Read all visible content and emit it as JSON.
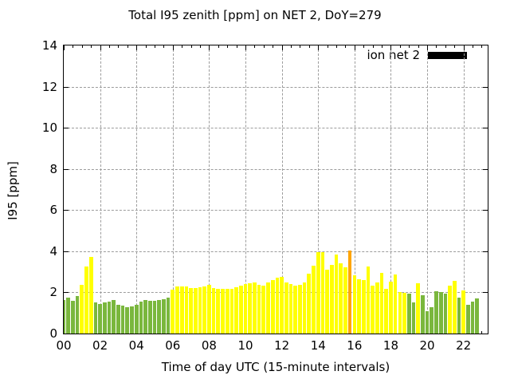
{
  "title": "Total I95 zenith [ppm] on NET 2, DoY=279",
  "legend": {
    "label": "ion net 2",
    "swatch_color": "#000000"
  },
  "axes": {
    "ylabel": "I95 [ppm]",
    "xlabel": "Time of day UTC (15-minute intervals)",
    "y_ticks": [
      "0",
      "2",
      "4",
      "6",
      "8",
      "10",
      "12",
      "14"
    ],
    "x_ticks": [
      "00",
      "02",
      "04",
      "06",
      "08",
      "10",
      "12",
      "14",
      "16",
      "18",
      "20",
      "22"
    ]
  },
  "chart_data": {
    "type": "bar",
    "title": "Total I95 zenith [ppm] on NET 2, DoY=279",
    "xlabel": "Time of day UTC (15-minute intervals)",
    "ylabel": "I95 [ppm]",
    "legend": "ion net 2",
    "legend_position": "top-right-inside",
    "grid": true,
    "ylim": [
      0,
      14
    ],
    "x_hours_range": [
      0,
      23.33
    ],
    "interval_minutes": 15,
    "palette": {
      "g": "#7ab73d",
      "y": "#ffff00",
      "o": "#ffa500"
    },
    "categories": [
      "00:00",
      "00:15",
      "00:30",
      "00:45",
      "01:00",
      "01:15",
      "01:30",
      "01:45",
      "02:00",
      "02:15",
      "02:30",
      "02:45",
      "03:00",
      "03:15",
      "03:30",
      "03:45",
      "04:00",
      "04:15",
      "04:30",
      "04:45",
      "05:00",
      "05:15",
      "05:30",
      "05:45",
      "06:00",
      "06:15",
      "06:30",
      "06:45",
      "07:00",
      "07:15",
      "07:30",
      "07:45",
      "08:00",
      "08:15",
      "08:30",
      "08:45",
      "09:00",
      "09:15",
      "09:30",
      "09:45",
      "10:00",
      "10:15",
      "10:30",
      "10:45",
      "11:00",
      "11:15",
      "11:30",
      "11:45",
      "12:00",
      "12:15",
      "12:30",
      "12:45",
      "13:00",
      "13:15",
      "13:30",
      "13:45",
      "14:00",
      "14:15",
      "14:30",
      "14:45",
      "15:00",
      "15:15",
      "15:30",
      "15:45",
      "16:00",
      "16:15",
      "16:30",
      "16:45",
      "17:00",
      "17:15",
      "17:30",
      "17:45",
      "18:00",
      "18:15",
      "18:30",
      "18:45",
      "19:00",
      "19:15",
      "19:30",
      "19:45",
      "20:00",
      "20:15",
      "20:30",
      "20:45",
      "21:00",
      "21:15",
      "21:30",
      "21:45",
      "22:00",
      "22:15",
      "22:30",
      "22:45"
    ],
    "values": [
      1.63,
      1.74,
      1.6,
      1.84,
      2.37,
      3.25,
      3.72,
      1.53,
      1.43,
      1.53,
      1.57,
      1.63,
      1.4,
      1.35,
      1.28,
      1.33,
      1.4,
      1.55,
      1.62,
      1.6,
      1.6,
      1.63,
      1.68,
      1.73,
      2.15,
      2.3,
      2.3,
      2.27,
      2.22,
      2.22,
      2.23,
      2.28,
      2.35,
      2.22,
      2.18,
      2.17,
      2.18,
      2.17,
      2.24,
      2.31,
      2.41,
      2.46,
      2.48,
      2.35,
      2.33,
      2.5,
      2.6,
      2.72,
      2.76,
      2.5,
      2.4,
      2.31,
      2.35,
      2.5,
      2.89,
      3.28,
      3.95,
      3.95,
      3.09,
      3.35,
      3.82,
      3.4,
      3.23,
      4.05,
      2.85,
      2.63,
      2.61,
      3.25,
      2.31,
      2.48,
      2.96,
      2.18,
      2.53,
      2.87,
      2.02,
      1.98,
      1.94,
      1.53,
      2.45,
      1.86,
      1.1,
      1.27,
      2.05,
      2.0,
      1.92,
      2.31,
      2.55,
      1.75,
      2.1,
      1.4,
      1.55,
      1.7
    ],
    "colors": [
      "g",
      "g",
      "g",
      "g",
      "y",
      "y",
      "y",
      "g",
      "g",
      "g",
      "g",
      "g",
      "g",
      "g",
      "g",
      "g",
      "g",
      "g",
      "g",
      "g",
      "g",
      "g",
      "g",
      "g",
      "y",
      "y",
      "y",
      "y",
      "y",
      "y",
      "y",
      "y",
      "y",
      "y",
      "y",
      "y",
      "y",
      "y",
      "y",
      "y",
      "y",
      "y",
      "y",
      "y",
      "y",
      "y",
      "y",
      "y",
      "y",
      "y",
      "y",
      "y",
      "y",
      "y",
      "y",
      "y",
      "y",
      "y",
      "y",
      "y",
      "y",
      "y",
      "y",
      "o",
      "y",
      "y",
      "y",
      "y",
      "y",
      "y",
      "y",
      "y",
      "y",
      "y",
      "y",
      "y",
      "g",
      "g",
      "y",
      "g",
      "g",
      "g",
      "g",
      "g",
      "g",
      "y",
      "y",
      "g",
      "y",
      "g",
      "g",
      "g"
    ]
  }
}
